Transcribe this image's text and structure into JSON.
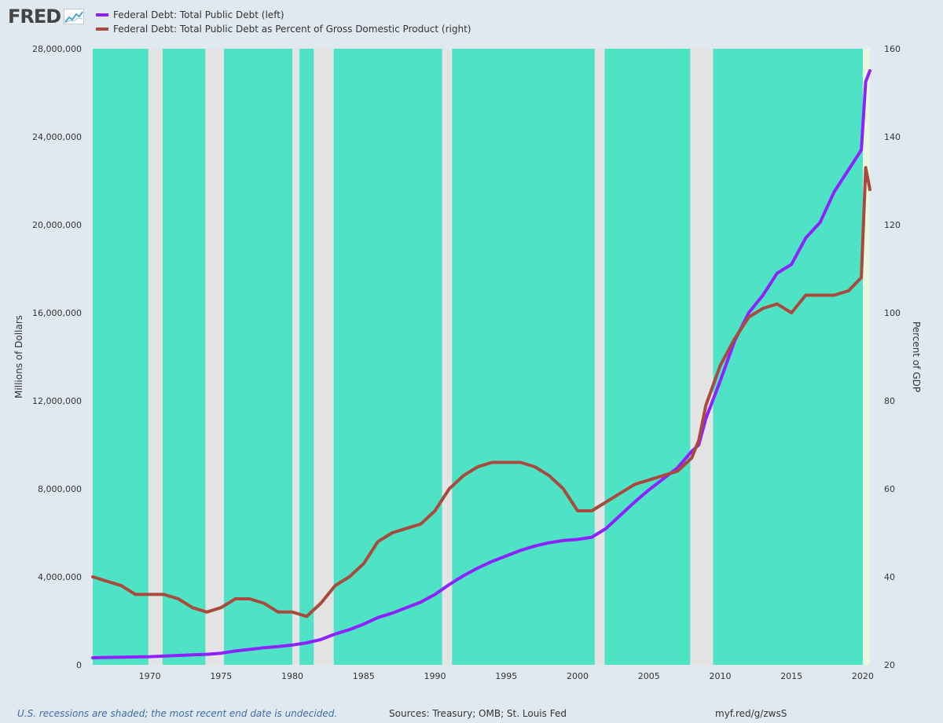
{
  "logo": {
    "text": "FRED",
    "icon": "chart-line-icon"
  },
  "legend": [
    {
      "label": "Federal Debt: Total Public Debt (left)",
      "color": "#8e22ff"
    },
    {
      "label": "Federal Debt: Total Public Debt as Percent of Gross Domestic Product (right)",
      "color": "#a84a3e"
    }
  ],
  "footer": {
    "note": "U.S. recessions are shaded; the most recent end date is undecided.",
    "sources": "Sources: Treasury; OMB; St. Louis Fed",
    "link": "myf.red/g/zwsS"
  },
  "chart_data": {
    "type": "line",
    "title": "",
    "xlabel": "",
    "ylabel": "Millions of Dollars",
    "y2label": "Percent of GDP",
    "xlim": [
      1966.0,
      2020.5
    ],
    "ylim": [
      0,
      28000000
    ],
    "y2lim": [
      20,
      160
    ],
    "x_ticks": [
      1970,
      1975,
      1980,
      1985,
      1990,
      1995,
      2000,
      2005,
      2010,
      2015,
      2020
    ],
    "y_ticks": [
      0,
      4000000,
      8000000,
      12000000,
      16000000,
      20000000,
      24000000,
      28000000
    ],
    "y_tick_labels": [
      "0",
      "4,000,000",
      "8,000,000",
      "12,000,000",
      "16,000,000",
      "20,000,000",
      "24,000,000",
      "28,000,000"
    ],
    "y2_ticks": [
      20,
      40,
      60,
      80,
      100,
      120,
      140,
      160
    ],
    "colors": {
      "plot_background": "#4de3c4",
      "recession": "#e4e4e4",
      "undecided": "#e9f7df"
    },
    "recessions": [
      [
        1969.9,
        1970.9
      ],
      [
        1973.9,
        1975.2
      ],
      [
        1980.0,
        1980.5
      ],
      [
        1981.5,
        1982.9
      ],
      [
        1990.5,
        1991.2
      ],
      [
        2001.2,
        2001.9
      ],
      [
        2007.9,
        2009.5
      ],
      [
        2020.0,
        2020.5
      ]
    ],
    "series": [
      {
        "name": "Federal Debt: Total Public Debt (left)",
        "axis": "left",
        "color": "#8e22ff",
        "x": [
          1966.0,
          1968.0,
          1970.0,
          1972.0,
          1974.0,
          1975.0,
          1976.0,
          1977.0,
          1978.0,
          1979.0,
          1980.0,
          1981.0,
          1982.0,
          1983.0,
          1984.0,
          1985.0,
          1986.0,
          1987.0,
          1988.0,
          1989.0,
          1990.0,
          1991.0,
          1992.0,
          1993.0,
          1994.0,
          1995.0,
          1996.0,
          1997.0,
          1998.0,
          1999.0,
          2000.0,
          2001.0,
          2002.0,
          2003.0,
          2004.0,
          2005.0,
          2006.0,
          2007.0,
          2008.0,
          2008.5,
          2009.0,
          2010.0,
          2011.0,
          2012.0,
          2013.0,
          2014.0,
          2015.0,
          2016.0,
          2017.0,
          2018.0,
          2019.0,
          2019.9,
          2020.2,
          2020.5
        ],
        "values": [
          320000,
          350000,
          370000,
          430000,
          480000,
          530000,
          630000,
          700000,
          780000,
          830000,
          900000,
          1000000,
          1150000,
          1400000,
          1600000,
          1850000,
          2150000,
          2350000,
          2600000,
          2850000,
          3200000,
          3650000,
          4050000,
          4400000,
          4700000,
          4950000,
          5200000,
          5400000,
          5550000,
          5650000,
          5700000,
          5800000,
          6200000,
          6800000,
          7400000,
          7950000,
          8450000,
          8950000,
          9700000,
          10000000,
          11200000,
          12900000,
          14700000,
          16000000,
          16800000,
          17800000,
          18200000,
          19400000,
          20100000,
          21500000,
          22500000,
          23400000,
          26500000,
          27000000
        ]
      },
      {
        "name": "Federal Debt: Total Public Debt as Percent of Gross Domestic Product (right)",
        "axis": "right",
        "color": "#a84a3e",
        "x": [
          1966.0,
          1967.0,
          1968.0,
          1969.0,
          1970.0,
          1971.0,
          1972.0,
          1973.0,
          1974.0,
          1975.0,
          1976.0,
          1977.0,
          1978.0,
          1979.0,
          1980.0,
          1981.0,
          1982.0,
          1983.0,
          1984.0,
          1985.0,
          1986.0,
          1987.0,
          1988.0,
          1989.0,
          1990.0,
          1991.0,
          1992.0,
          1993.0,
          1994.0,
          1995.0,
          1996.0,
          1997.0,
          1998.0,
          1999.0,
          2000.0,
          2001.0,
          2002.0,
          2003.0,
          2004.0,
          2005.0,
          2006.0,
          2007.0,
          2008.0,
          2008.5,
          2009.0,
          2010.0,
          2011.0,
          2012.0,
          2013.0,
          2014.0,
          2015.0,
          2016.0,
          2017.0,
          2018.0,
          2019.0,
          2019.9,
          2020.2,
          2020.5
        ],
        "values": [
          40,
          39,
          38,
          36,
          36,
          36,
          35,
          33,
          32,
          33,
          35,
          35,
          34,
          32,
          32,
          31,
          34,
          38,
          40,
          43,
          48,
          50,
          51,
          52,
          55,
          60,
          63,
          65,
          66,
          66,
          66,
          65,
          63,
          60,
          55,
          55,
          57,
          59,
          61,
          62,
          63,
          64,
          67,
          71,
          79,
          88,
          94,
          99,
          101,
          102,
          100,
          104,
          104,
          104,
          105,
          108,
          133,
          128
        ]
      }
    ]
  }
}
